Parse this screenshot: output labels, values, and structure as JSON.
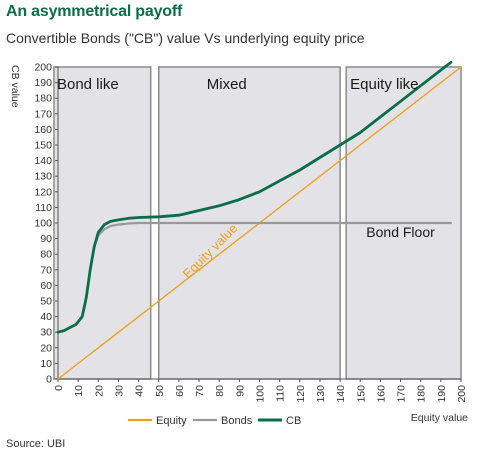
{
  "header": {
    "title": "An asymmetrical payoff",
    "subtitle": "Convertible Bonds (\"CB\") value Vs underlying equity price"
  },
  "footer": {
    "source": "Source: UBI"
  },
  "colors": {
    "equity": "#f0a020",
    "bonds": "#999999",
    "cb": "#0a6e47",
    "region_fill": "#e3e3e7",
    "region_border": "#8c8c8c"
  },
  "chart_data": {
    "type": "line",
    "title": "",
    "ylabel": "CB value",
    "xlabel": "Equity value",
    "xlim": [
      0,
      200
    ],
    "ylim": [
      0,
      200
    ],
    "x_ticks": [
      0,
      10,
      20,
      30,
      40,
      50,
      60,
      70,
      80,
      90,
      100,
      110,
      120,
      130,
      140,
      150,
      160,
      170,
      180,
      190,
      200
    ],
    "y_ticks": [
      0,
      10,
      20,
      30,
      40,
      50,
      60,
      70,
      80,
      90,
      100,
      110,
      120,
      130,
      140,
      150,
      160,
      170,
      180,
      190,
      200
    ],
    "regions": [
      {
        "label": "Bond like",
        "x": [
          -2,
          46
        ]
      },
      {
        "label": "Mixed",
        "x": [
          50,
          140
        ]
      },
      {
        "label": "Equity like",
        "x": [
          143,
          200
        ]
      }
    ],
    "series": [
      {
        "name": "Equity",
        "color": "#f0a020",
        "x": [
          0,
          200
        ],
        "y": [
          0,
          200
        ]
      },
      {
        "name": "Bonds",
        "color": "#999999",
        "x": [
          0,
          3,
          6,
          9,
          12,
          14,
          16,
          18,
          20,
          23,
          26,
          30,
          35,
          40,
          50,
          60,
          80,
          100,
          120,
          140,
          160,
          180,
          195
        ],
        "y": [
          30,
          31,
          33,
          35,
          40,
          52,
          70,
          85,
          92,
          96,
          98,
          99,
          99.7,
          100,
          100,
          100,
          100,
          100,
          100,
          100,
          100,
          100,
          100
        ]
      },
      {
        "name": "CB",
        "color": "#0a6e47",
        "x": [
          0,
          3,
          6,
          9,
          12,
          14,
          16,
          18,
          20,
          23,
          26,
          30,
          35,
          40,
          50,
          60,
          70,
          80,
          90,
          100,
          110,
          120,
          130,
          140,
          150,
          160,
          170,
          180,
          190,
          195
        ],
        "y": [
          30,
          31,
          33,
          35,
          40,
          52,
          70,
          85,
          94,
          99,
          101,
          102,
          103,
          103.5,
          104,
          105,
          108,
          111,
          115,
          120,
          127,
          134,
          142,
          150,
          158,
          168,
          178,
          188,
          198,
          203
        ]
      }
    ],
    "annotations": {
      "equity_label": "Equity value",
      "floor_label": "Bond Floor"
    },
    "legend": {
      "position": "bottom",
      "items": [
        "Equity",
        "Bonds",
        "CB"
      ]
    },
    "grid": false
  }
}
